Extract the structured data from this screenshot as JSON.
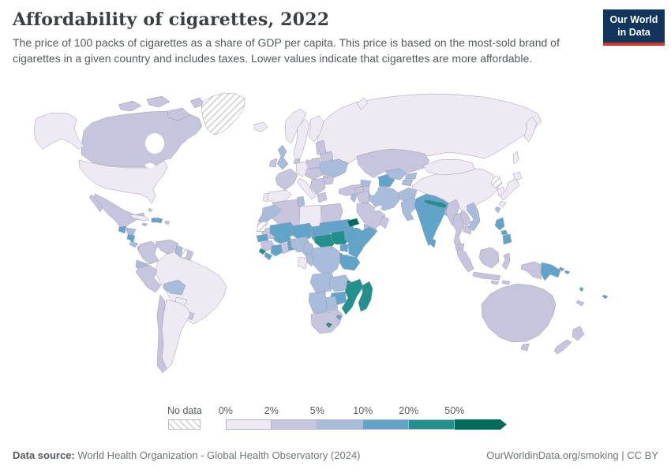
{
  "header": {
    "title": "Affordability of cigarettes, 2022",
    "subtitle": "The price of 100 packs of cigarettes as a share of GDP per capita. This price is based on the most-sold brand of cigarettes in a given country and includes taxes. Lower values indicate that cigarettes are more affordable.",
    "logo": {
      "line1": "Our World",
      "line2": "in Data",
      "bg_color": "#12355b",
      "stripe_color": "#d4382d"
    }
  },
  "legend": {
    "no_data_label": "No data",
    "tick_labels": [
      "0%",
      "2%",
      "5%",
      "10%",
      "20%",
      "50%"
    ]
  },
  "footer": {
    "source_label": "Data source:",
    "source_text": " World Health Organization - Global Health Observatory (2024)",
    "right_text": "OurWorldinData.org/smoking | CC BY"
  },
  "chart_data": {
    "type": "choropleth",
    "title": "Affordability of cigarettes, 2022",
    "unit": "price of 100 packs of cigarettes as a share of GDP per capita",
    "legend_position": "bottom",
    "bins": [
      {
        "key": "b0",
        "label": "0-2%",
        "color": "#eee9f3"
      },
      {
        "key": "b1",
        "label": "2-5%",
        "color": "#c7c4de"
      },
      {
        "key": "b2",
        "label": "5-10%",
        "color": "#a7bddb"
      },
      {
        "key": "b3",
        "label": "10-20%",
        "color": "#60a5c9"
      },
      {
        "key": "b4",
        "label": "20-50%",
        "color": "#22908c"
      },
      {
        "key": "b5",
        "label": "50%+",
        "color": "#006c5a"
      },
      {
        "key": "nodata",
        "label": "No data",
        "color": "hatch"
      }
    ],
    "countries": {
      "united-states": "b0",
      "canada": "b1",
      "greenland": "nodata",
      "mexico": "b1",
      "cuba": "b0",
      "haiti": "b3",
      "dominican-republic": "b3",
      "jamaica": "b2",
      "puerto-rico": "b1",
      "bahamas": "b1",
      "guatemala": "b3",
      "honduras": "b2",
      "nicaragua": "b3",
      "costa-rica": "b2",
      "panama": "b2",
      "trinidad-and-tobago": "b2",
      "colombia": "b1",
      "venezuela": "b1",
      "guyana": "b2",
      "suriname": "nodata",
      "french-guiana": "b1",
      "ecuador": "b2",
      "peru": "b1",
      "brazil": "b0",
      "bolivia": "b2",
      "paraguay": "b0",
      "uruguay": "b1",
      "argentina": "b0",
      "chile": "b1",
      "iceland": "b0",
      "norway": "b0",
      "sweden": "b0",
      "finland": "b0",
      "denmark": "b1",
      "united-kingdom": "b2",
      "ireland": "b1",
      "germany": "b0",
      "france": "b1",
      "portugal": "b0",
      "spain": "b0",
      "italy": "b0",
      "central-europe": "b1",
      "poland": "b1",
      "balkans": "b1",
      "greece": "b1",
      "romania": "b1",
      "bulgaria": "b1",
      "ukraine": "b2",
      "belarus": "b1",
      "baltic-states": "b1",
      "russia": "b0",
      "turkey": "b1",
      "caucasus": "b2",
      "syria": "b1",
      "levant": "b2",
      "iraq": "b1",
      "saudi-arabia": "b1",
      "yemen": "b2",
      "oman": "b1",
      "iran": "b2",
      "afghanistan": "b2",
      "pakistan": "b2",
      "turkmenistan": "b3",
      "uzbekistan": "b2",
      "kyrgyzstan": "b2",
      "tajikistan": "b2",
      "kazakhstan": "b1",
      "india": "b3",
      "nepal": "b4",
      "bhutan": "b3",
      "bangladesh": "b2",
      "sri-lanka": "b3",
      "china": "b0",
      "mongolia": "b0",
      "north-korea": "nodata",
      "south-korea": "b0",
      "japan": "b0",
      "taiwan": "b2",
      "myanmar": "b1",
      "thailand": "b1",
      "laos": "b1",
      "cambodia": "b1",
      "vietnam": "b2",
      "malaysia": "b1",
      "indonesia": "b1",
      "papua-new-guinea": "b3",
      "philippines": "b3",
      "solomon-islands": "b3",
      "vanuatu": "b3",
      "fiji": "b3",
      "new-caledonia": "b1",
      "australia": "b1",
      "new-zealand": "b1",
      "morocco": "b2",
      "western-sahara": "nodata",
      "algeria": "b1",
      "tunisia": "b2",
      "libya": "b0",
      "egypt": "b1",
      "mauritania": "b1",
      "mali": "b3",
      "senegal": "b3",
      "guinea": "b1",
      "sierra-leone": "b4",
      "liberia": "b3",
      "ivory-coast": "b3",
      "ghana": "b1",
      "burkina-faso": "b3",
      "togo-benin": "b3",
      "niger": "b3",
      "nigeria": "b2",
      "chad": "b3",
      "cameroon": "b2",
      "central-african-republic": "b4",
      "south-sudan": "b4",
      "sudan": "b3",
      "eritrea": "b5",
      "djibouti": "b3",
      "ethiopia": "b3",
      "somalia": "b3",
      "uganda": "b3",
      "kenya": "b3",
      "rwanda-burundi": "b3",
      "tanzania": "b3",
      "dr-congo": "b2",
      "congo": "b2",
      "gabon": "b0",
      "angola": "b2",
      "zambia": "b2",
      "malawi": "b4",
      "mozambique": "b4",
      "zimbabwe": "b3",
      "botswana": "b2",
      "namibia": "b2",
      "south-africa": "b1",
      "lesotho": "b4",
      "eswatini": "b3",
      "madagascar": "b4"
    }
  }
}
